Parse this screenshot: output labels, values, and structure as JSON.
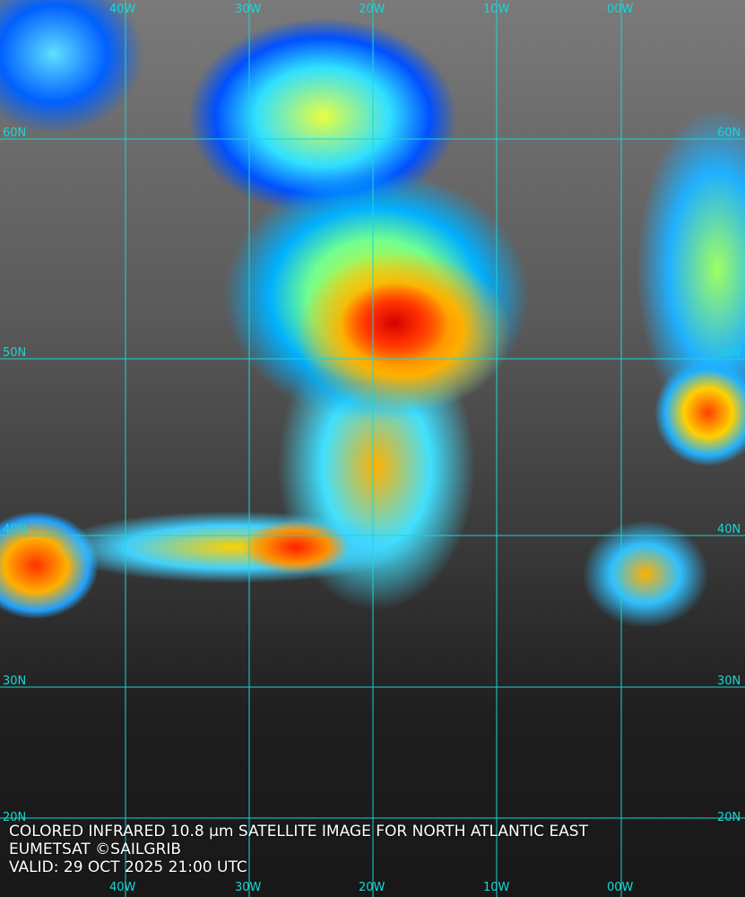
{
  "caption": {
    "title": "COLORED INFRARED 10.8 µm SATELLITE IMAGE FOR NORTH ATLANTIC EAST",
    "credit": "EUMETSAT ©SAILGRIB",
    "valid": "VALID:  29 OCT 2025 21:00 UTC"
  },
  "longitudes": [
    "40W",
    "30W",
    "20W",
    "10W",
    "00W"
  ],
  "latitudes": [
    "60N",
    "50N",
    "40N",
    "30N",
    "20N"
  ],
  "colors": {
    "grid": "#19d6d6",
    "text": "#ffffff"
  }
}
